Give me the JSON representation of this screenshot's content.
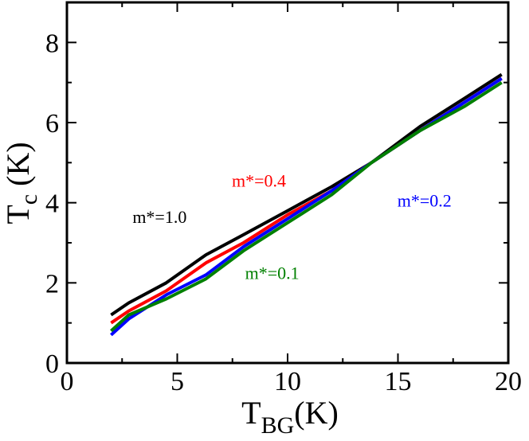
{
  "chart_data": {
    "type": "line",
    "xlabel": {
      "main": "T",
      "sub": "BG",
      "unit": "(K)"
    },
    "ylabel": {
      "main": "T",
      "sub": "c",
      "unit": " (K)"
    },
    "xlim": [
      0,
      20
    ],
    "ylim": [
      0,
      9
    ],
    "xticks": [
      0,
      5,
      10,
      15,
      20
    ],
    "xtick_labels": [
      "0",
      "5",
      "10",
      "15",
      "20"
    ],
    "yticks": [
      0,
      2,
      4,
      6,
      8
    ],
    "ytick_labels": [
      "0",
      "2",
      "4",
      "6",
      "8"
    ],
    "grid": false,
    "series": [
      {
        "name": "m*=1.0",
        "color": "#000000",
        "x": [
          2.0,
          2.8,
          4.5,
          6.3,
          8.0,
          10.0,
          12.0,
          13.8,
          16.0,
          18.0,
          19.7
        ],
        "y": [
          1.2,
          1.5,
          2.0,
          2.7,
          3.2,
          3.8,
          4.4,
          5.0,
          5.9,
          6.6,
          7.2
        ]
      },
      {
        "name": "m*=0.4",
        "color": "#ff0000",
        "x": [
          2.0,
          2.8,
          4.5,
          6.3,
          8.0,
          10.0,
          12.0,
          13.8,
          16.0,
          18.0,
          19.7
        ],
        "y": [
          1.0,
          1.3,
          1.8,
          2.5,
          3.0,
          3.7,
          4.3,
          5.0,
          5.8,
          6.5,
          7.1
        ]
      },
      {
        "name": "m*=0.2",
        "color": "#0000ff",
        "x": [
          2.0,
          2.8,
          4.5,
          6.3,
          8.0,
          10.0,
          12.0,
          13.8,
          16.0,
          18.0,
          19.7
        ],
        "y": [
          0.7,
          1.1,
          1.7,
          2.2,
          2.9,
          3.6,
          4.3,
          5.0,
          5.8,
          6.5,
          7.1
        ]
      },
      {
        "name": "m*=0.1",
        "color": "#008000",
        "x": [
          2.0,
          2.8,
          4.5,
          6.3,
          8.0,
          10.0,
          12.0,
          13.8,
          16.0,
          18.0,
          19.7
        ],
        "y": [
          0.8,
          1.2,
          1.6,
          2.1,
          2.8,
          3.5,
          4.2,
          5.0,
          5.8,
          6.4,
          7.0
        ]
      }
    ],
    "annotations": [
      {
        "text": "m*=1.0",
        "color": "#000000",
        "x": 4.2,
        "y": 3.5
      },
      {
        "text": "m*=0.4",
        "color": "#ff0000",
        "x": 8.7,
        "y": 4.4
      },
      {
        "text": "m*=0.2",
        "color": "#0000ff",
        "x": 16.2,
        "y": 3.9
      },
      {
        "text": "m*=0.1",
        "color": "#008000",
        "x": 9.3,
        "y": 2.1
      }
    ]
  }
}
